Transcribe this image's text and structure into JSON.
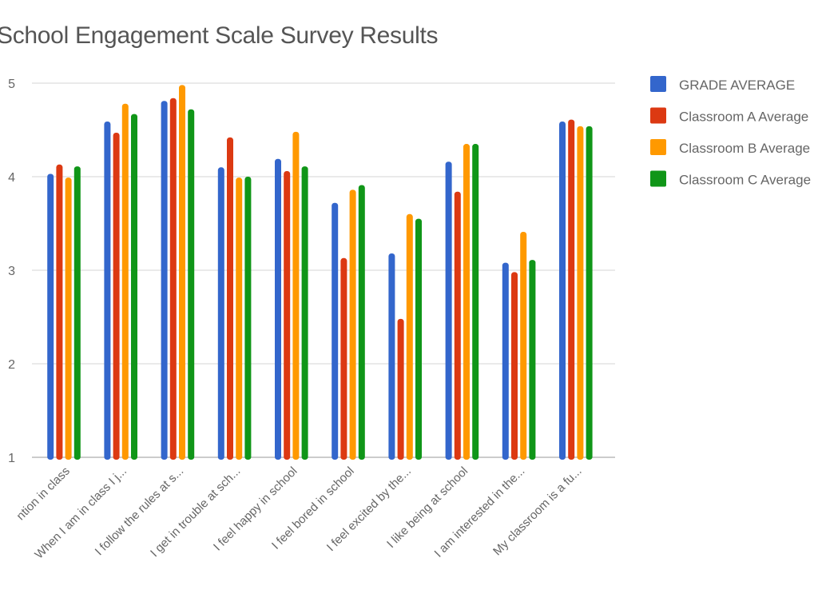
{
  "chart_data": {
    "type": "bar",
    "title": "School Engagement Scale Survey Results",
    "xlabel": "",
    "ylabel": "",
    "ylim": [
      1,
      5
    ],
    "yticks": [
      "1",
      "2",
      "3",
      "4",
      "5"
    ],
    "grid": true,
    "legend_position": "right",
    "categories": [
      "ntion in class",
      "When I am in class I j...",
      "I follow the rules at s...",
      "I get in trouble at sch...",
      "I feel happy in school",
      "I feel bored in school",
      "I feel excited by the...",
      "I like being at school",
      "I am interested in the...",
      "My classroom is a fu..."
    ],
    "series": [
      {
        "name": "GRADE AVERAGE",
        "color": "#3366cc",
        "values": [
          4.03,
          4.59,
          4.81,
          4.1,
          4.19,
          3.72,
          3.18,
          4.16,
          3.08,
          4.59
        ]
      },
      {
        "name": "Classroom A Average",
        "color": "#dc3912",
        "values": [
          4.13,
          4.47,
          4.84,
          4.42,
          4.06,
          3.13,
          2.48,
          3.84,
          2.98,
          4.61
        ]
      },
      {
        "name": "Classroom B Average",
        "color": "#ff9900",
        "values": [
          3.99,
          4.78,
          4.98,
          3.99,
          4.48,
          3.86,
          3.6,
          4.35,
          3.41,
          4.54
        ]
      },
      {
        "name": "Classroom C Average",
        "color": "#109618",
        "values": [
          4.11,
          4.67,
          4.72,
          4.0,
          4.11,
          3.91,
          3.55,
          4.35,
          3.11,
          4.54
        ]
      }
    ]
  }
}
